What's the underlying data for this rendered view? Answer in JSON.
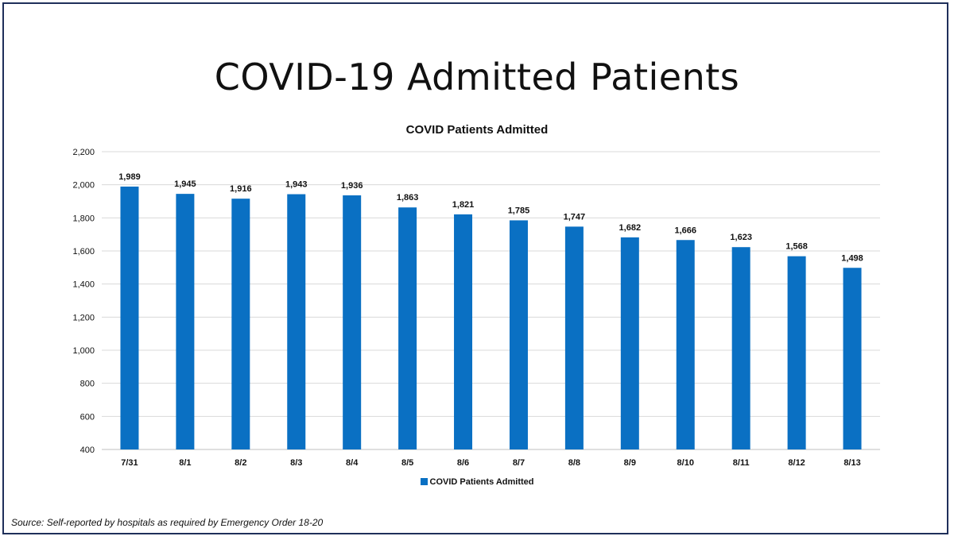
{
  "page": {
    "title": "COVID-19 Admitted Patients",
    "source": "Source: Self-reported by hospitals as required by Emergency Order 18-20"
  },
  "chart_data": {
    "type": "bar",
    "title": "COVID Patients Admitted",
    "xlabel": "",
    "ylabel": "",
    "categories": [
      "7/31",
      "8/1",
      "8/2",
      "8/3",
      "8/4",
      "8/5",
      "8/6",
      "8/7",
      "8/8",
      "8/9",
      "8/10",
      "8/11",
      "8/12",
      "8/13"
    ],
    "series": [
      {
        "name": "COVID Patients Admitted",
        "color": "#0a70c3",
        "values": [
          1989,
          1945,
          1916,
          1943,
          1936,
          1863,
          1821,
          1785,
          1747,
          1682,
          1666,
          1623,
          1568,
          1498
        ]
      }
    ],
    "data_labels": [
      "1,989",
      "1,945",
      "1,916",
      "1,943",
      "1,936",
      "1,863",
      "1,821",
      "1,785",
      "1,747",
      "1,682",
      "1,666",
      "1,623",
      "1,568",
      "1,498"
    ],
    "ylim": [
      400,
      2200
    ],
    "yticks": [
      400,
      600,
      800,
      1000,
      1200,
      1400,
      1600,
      1800,
      2000,
      2200
    ],
    "ytick_labels": [
      "400",
      "600",
      "800",
      "1,000",
      "1,200",
      "1,400",
      "1,600",
      "1,800",
      "2,000",
      "2,200"
    ],
    "grid": true,
    "legend_position": "bottom"
  }
}
